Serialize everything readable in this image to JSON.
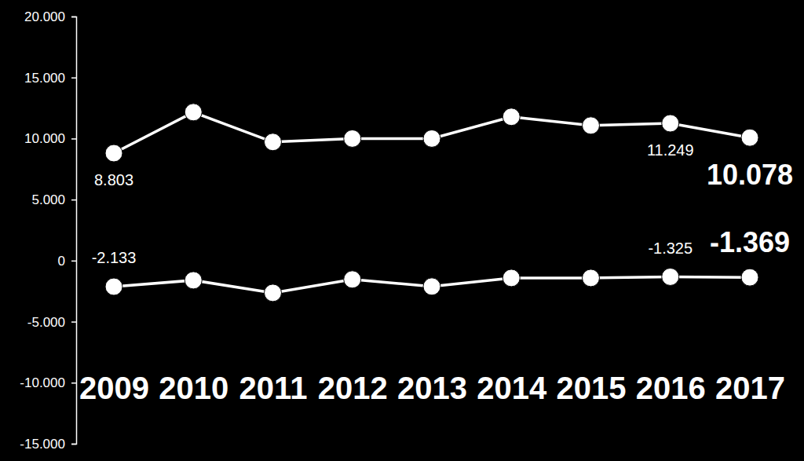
{
  "chart_data": {
    "type": "line",
    "categories": [
      "2009",
      "2010",
      "2011",
      "2012",
      "2013",
      "2014",
      "2015",
      "2016",
      "2017"
    ],
    "series": [
      {
        "color": "#ffffff",
        "marker": "circle",
        "values": [
          8803,
          12160,
          9720,
          10000,
          10000,
          11780,
          11070,
          11249,
          10078
        ],
        "value_labels": [
          "8.803",
          null,
          null,
          null,
          null,
          null,
          null,
          "11.249",
          "10.078"
        ]
      },
      {
        "color": "#ffffff",
        "marker": "circle",
        "values": [
          -2133,
          -1610,
          -2640,
          -1540,
          -2120,
          -1420,
          -1420,
          -1325,
          -1369
        ],
        "value_labels": [
          "-2.133",
          null,
          null,
          null,
          null,
          null,
          null,
          "-1.325",
          "-1.369"
        ]
      }
    ],
    "ylim": [
      -15000,
      20000
    ],
    "yticks": [
      {
        "value": -15000,
        "label": "-15.000"
      },
      {
        "value": -10000,
        "label": "-10.000"
      },
      {
        "value": -5000,
        "label": "-5.000"
      },
      0,
      {
        "value": 5000,
        "label": "5.000"
      },
      {
        "value": 10000,
        "label": "10.000"
      },
      {
        "value": 15000,
        "label": "15.000"
      },
      {
        "value": 20000,
        "label": "20.000"
      }
    ],
    "grid": false,
    "data_labels": true
  }
}
